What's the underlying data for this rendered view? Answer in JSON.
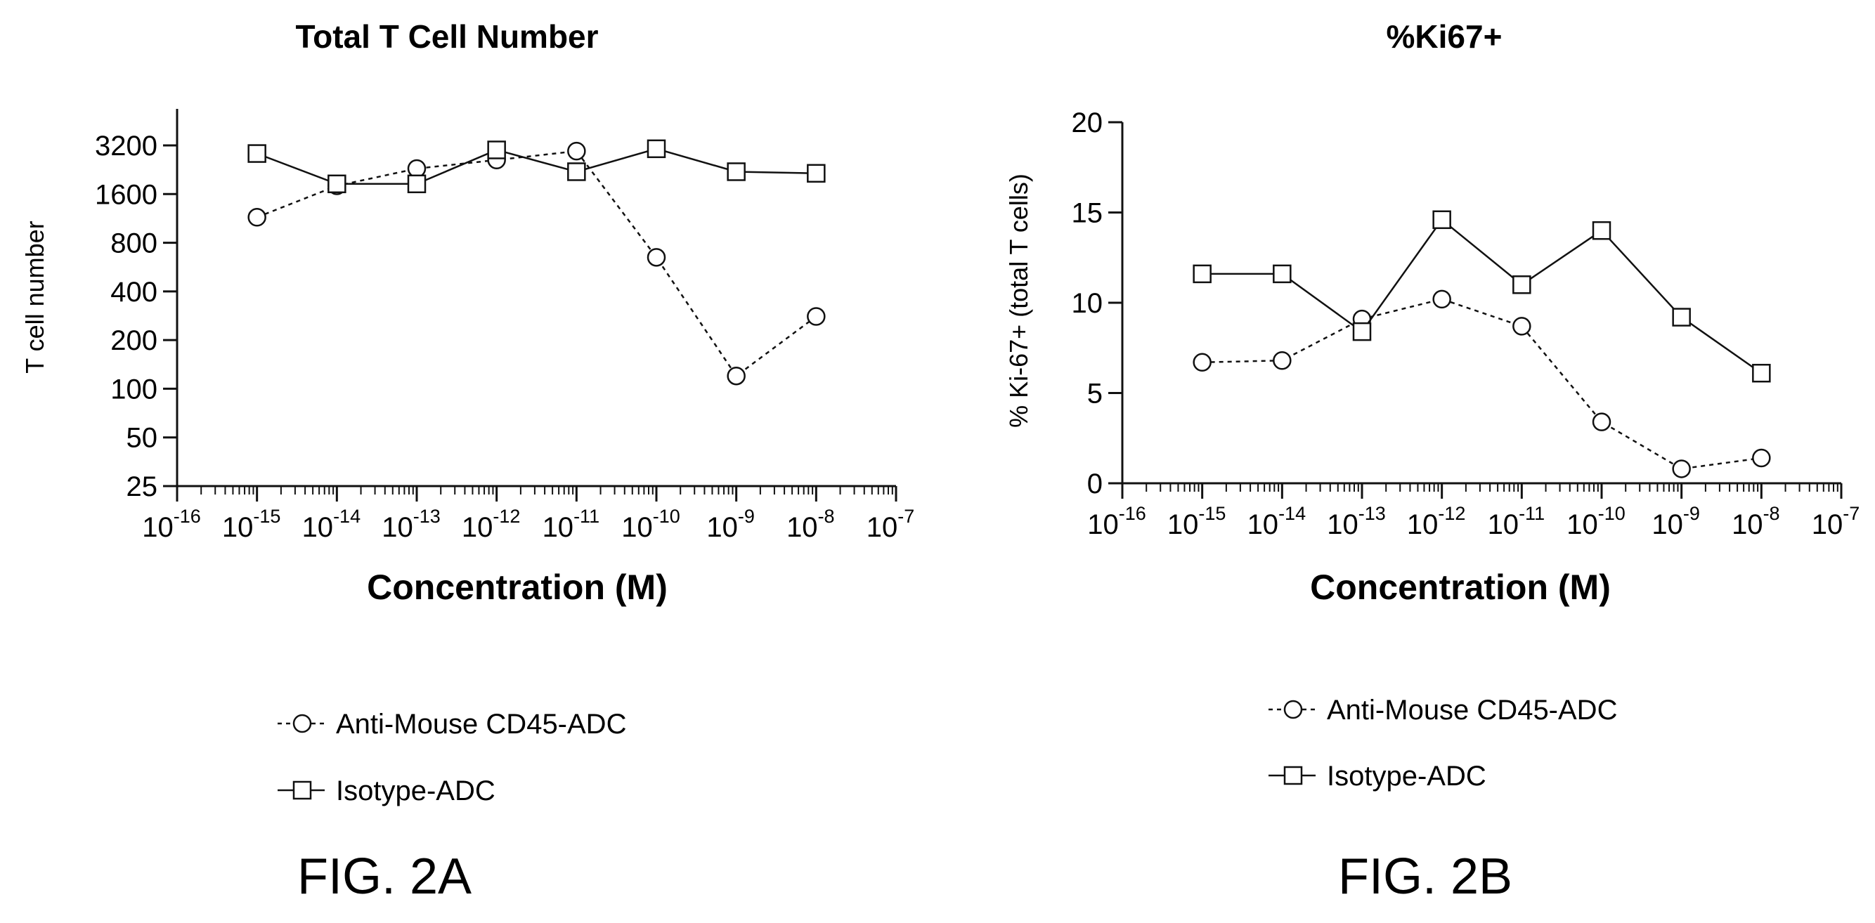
{
  "chart_data": [
    {
      "type": "line",
      "title": "Total T Cell Number",
      "xlabel": "Concentration (M)",
      "ylabel": "T cell number",
      "xscale": "log",
      "yscale": "log",
      "x_ticks": [
        {
          "base": "10",
          "exp": "-16"
        },
        {
          "base": "10",
          "exp": "-15"
        },
        {
          "base": "10",
          "exp": "-14"
        },
        {
          "base": "10",
          "exp": "-13"
        },
        {
          "base": "10",
          "exp": "-12"
        },
        {
          "base": "10",
          "exp": "-11"
        },
        {
          "base": "10",
          "exp": "-10"
        },
        {
          "base": "10",
          "exp": "-9"
        },
        {
          "base": "10",
          "exp": "-8"
        },
        {
          "base": "10",
          "exp": "-7"
        }
      ],
      "y_ticks": [
        "25",
        "50",
        "100",
        "200",
        "400",
        "800",
        "1600",
        "3200"
      ],
      "xlim": [
        1e-16,
        1e-07
      ],
      "ylim": [
        25,
        5000
      ],
      "x": [
        1e-15,
        1e-14,
        1e-13,
        1e-12,
        1e-11,
        1e-10,
        1e-09,
        1e-08
      ],
      "series": [
        {
          "name": "Anti-Mouse CD45-ADC",
          "marker": "circle",
          "line": "dotted",
          "values": [
            1150,
            1800,
            2300,
            2600,
            2950,
            650,
            120,
            280
          ]
        },
        {
          "name": "Isotype-ADC",
          "marker": "square",
          "line": "solid",
          "values": [
            2850,
            1850,
            1850,
            3000,
            2200,
            3050,
            2200,
            2150
          ]
        }
      ],
      "legend_position": "below",
      "figure_label": "FIG. 2A"
    },
    {
      "type": "line",
      "title": "%Ki67+",
      "xlabel": "Concentration (M)",
      "ylabel": "% Ki-67+ (total T cells)",
      "xscale": "log",
      "yscale": "linear",
      "x_ticks": [
        {
          "base": "10",
          "exp": "-16"
        },
        {
          "base": "10",
          "exp": "-15"
        },
        {
          "base": "10",
          "exp": "-14"
        },
        {
          "base": "10",
          "exp": "-13"
        },
        {
          "base": "10",
          "exp": "-12"
        },
        {
          "base": "10",
          "exp": "-11"
        },
        {
          "base": "10",
          "exp": "-10"
        },
        {
          "base": "10",
          "exp": "-9"
        },
        {
          "base": "10",
          "exp": "-8"
        },
        {
          "base": "10",
          "exp": "-7"
        }
      ],
      "y_ticks": [
        "0",
        "5",
        "10",
        "15",
        "20"
      ],
      "xlim": [
        1e-16,
        1e-07
      ],
      "ylim": [
        0,
        20
      ],
      "x": [
        1e-15,
        1e-14,
        1e-13,
        1e-12,
        1e-11,
        1e-10,
        1e-09,
        1e-08
      ],
      "series": [
        {
          "name": "Anti-Mouse CD45-ADC",
          "marker": "circle",
          "line": "dotted",
          "values": [
            6.7,
            6.8,
            9.1,
            10.2,
            8.7,
            3.4,
            0.8,
            1.4
          ]
        },
        {
          "name": "Isotype-ADC",
          "marker": "square",
          "line": "solid",
          "values": [
            11.6,
            11.6,
            8.4,
            14.6,
            11.0,
            14.0,
            9.2,
            6.1
          ]
        }
      ],
      "legend_position": "below",
      "figure_label": "FIG. 2B"
    }
  ]
}
